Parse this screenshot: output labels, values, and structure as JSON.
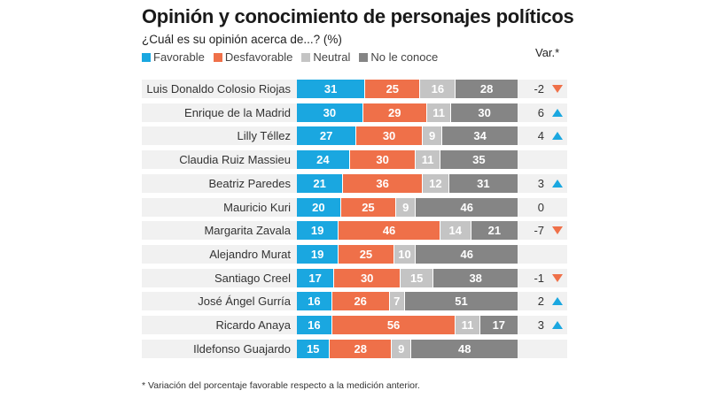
{
  "chart_data": {
    "type": "bar",
    "orientation": "horizontal-stacked-100",
    "title": "Opinión y conocimiento de personajes políticos",
    "subtitle": "¿Cuál es su opinión acerca de...? (%)",
    "var_header": "Var.*",
    "footnote": "* Variación del porcentaje favorable respecto a la medición anterior.",
    "legend": [
      {
        "name": "Favorable",
        "color": "#1aa7e0"
      },
      {
        "name": "Desfavorable",
        "color": "#ef7049"
      },
      {
        "name": "Neutral",
        "color": "#c4c4c4"
      },
      {
        "name": "No le conoce",
        "color": "#858585"
      }
    ],
    "categories": [
      "Luis Donaldo Colosio Riojas",
      "Enrique de la Madrid",
      "Lilly Téllez",
      "Claudia Ruiz Massieu",
      "Beatriz Paredes",
      "Mauricio Kuri",
      "Margarita Zavala",
      "Alejandro Murat",
      "Santiago Creel",
      "José Ángel Gurría",
      "Ricardo Anaya",
      "Ildefonso Guajardo"
    ],
    "series": [
      {
        "name": "Favorable",
        "values": [
          31,
          30,
          27,
          24,
          21,
          20,
          19,
          19,
          17,
          16,
          16,
          15
        ]
      },
      {
        "name": "Desfavorable",
        "values": [
          25,
          29,
          30,
          30,
          36,
          25,
          46,
          25,
          30,
          26,
          56,
          28
        ]
      },
      {
        "name": "Neutral",
        "values": [
          16,
          11,
          9,
          11,
          12,
          9,
          14,
          10,
          15,
          7,
          11,
          9
        ]
      },
      {
        "name": "No le conoce",
        "values": [
          28,
          30,
          34,
          35,
          31,
          46,
          21,
          46,
          38,
          51,
          17,
          48
        ]
      }
    ],
    "variation": [
      "-2",
      "6",
      "4",
      "",
      "3",
      "0",
      "-7",
      "",
      "-1",
      "2",
      "3",
      ""
    ],
    "variation_direction": [
      "down",
      "up",
      "up",
      "",
      "up",
      "none",
      "down",
      "",
      "down",
      "up",
      "up",
      ""
    ],
    "xlim": [
      0,
      100
    ],
    "grid": false,
    "legend_position": "top-left"
  }
}
